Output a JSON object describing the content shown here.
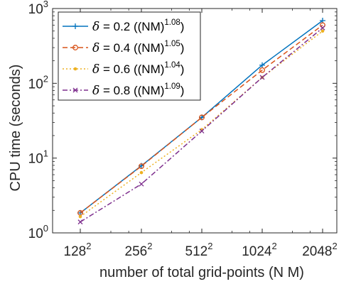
{
  "chart_data": {
    "type": "line",
    "xlabel": "number of total grid-points (N M)",
    "ylabel": "CPU time (seconds)",
    "x_scale": "log2",
    "y_scale": "log10",
    "x_ticks": [
      {
        "base": "128",
        "exp": "2"
      },
      {
        "base": "256",
        "exp": "2"
      },
      {
        "base": "512",
        "exp": "2"
      },
      {
        "base": "1024",
        "exp": "2"
      },
      {
        "base": "2048",
        "exp": "2"
      }
    ],
    "y_ticks": [
      {
        "base": "10",
        "exp": "0"
      },
      {
        "base": "10",
        "exp": "1"
      },
      {
        "base": "10",
        "exp": "2"
      },
      {
        "base": "10",
        "exp": "3"
      }
    ],
    "ylim": [
      1,
      1000
    ],
    "grid": false,
    "legend_position": "top-left",
    "series": [
      {
        "legend_symbol": "δ",
        "legend_text": " = 0.2 ((NM)",
        "legend_exp": "1.08",
        "legend_close": ")",
        "color": "#0072BD",
        "dash": "solid",
        "marker": "plus",
        "values": [
          1.85,
          7.9,
          35,
          175,
          690
        ]
      },
      {
        "legend_symbol": "δ",
        "legend_text": " = 0.4 ((NM)",
        "legend_exp": "1.05",
        "legend_close": ")",
        "color": "#D95319",
        "dash": "dashed",
        "marker": "circle",
        "values": [
          1.85,
          7.8,
          35,
          150,
          600
        ]
      },
      {
        "legend_symbol": "δ",
        "legend_text": " = 0.6 ((NM)",
        "legend_exp": "1.04",
        "legend_close": ")",
        "color": "#EDB120",
        "dash": "dotted",
        "marker": "dot",
        "values": [
          1.65,
          6.4,
          24,
          120,
          500
        ]
      },
      {
        "legend_symbol": "δ",
        "legend_text": " = 0.8 ((NM)",
        "legend_exp": "1.09",
        "legend_close": ")",
        "color": "#7E2F8E",
        "dash": "dashdot",
        "marker": "x",
        "values": [
          1.4,
          4.5,
          23,
          120,
          550
        ]
      }
    ]
  }
}
